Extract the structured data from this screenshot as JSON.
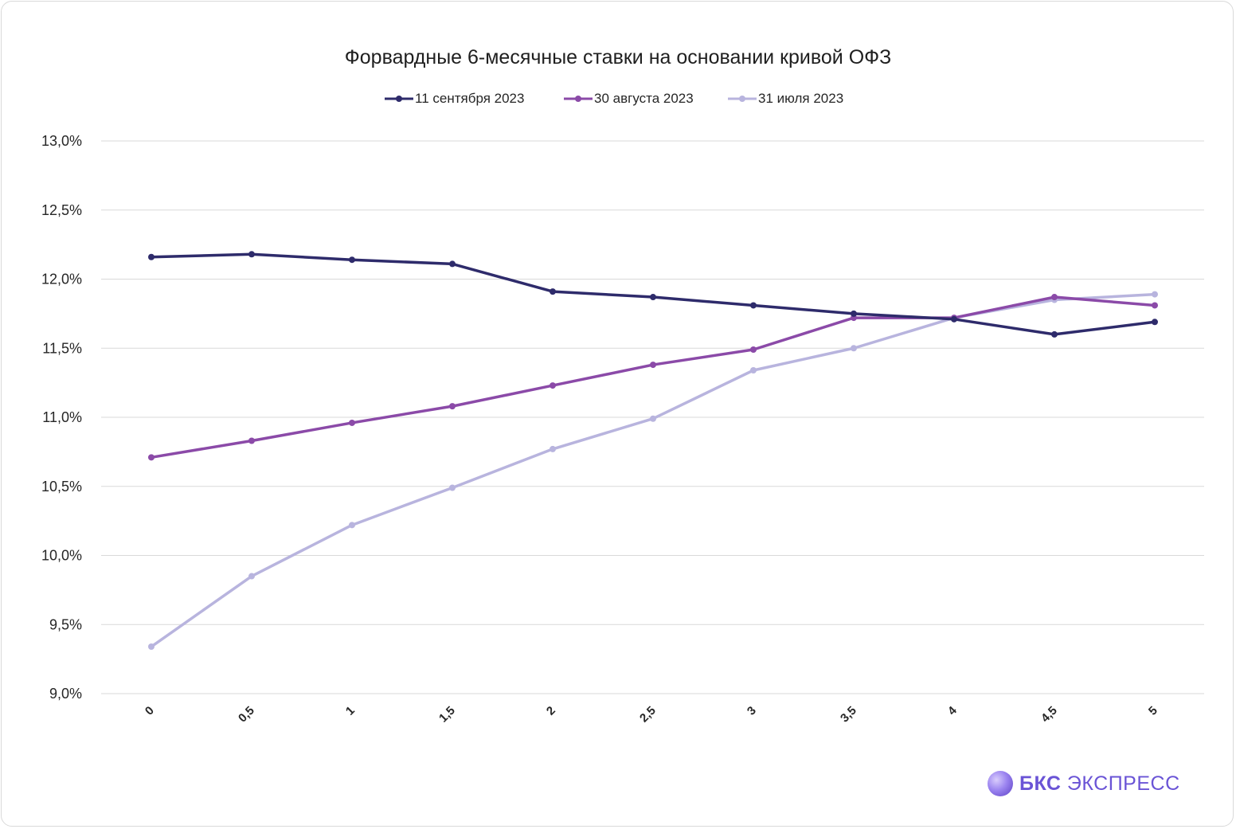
{
  "chart_data": {
    "type": "line",
    "title": "Форвардные 6-месячные ставки на основании кривой ОФЗ",
    "categories": [
      "0",
      "0,5",
      "1",
      "1,5",
      "2",
      "2,5",
      "3",
      "3,5",
      "4",
      "4,5",
      "5"
    ],
    "y_tick_labels": [
      "9,0%",
      "9,5%",
      "10,0%",
      "10,5%",
      "11,0%",
      "11,5%",
      "12,0%",
      "12,5%",
      "13,0%"
    ],
    "ylim": [
      9.0,
      13.0
    ],
    "grid": true,
    "legend_position": "top",
    "series": [
      {
        "name": "11 сентября 2023",
        "color": "#2e2b6b",
        "values": [
          12.16,
          12.18,
          12.14,
          12.11,
          11.91,
          11.87,
          11.81,
          11.75,
          11.71,
          11.6,
          11.69
        ]
      },
      {
        "name": "30 августа 2023",
        "color": "#8b4aa8",
        "values": [
          10.71,
          10.83,
          10.96,
          11.08,
          11.23,
          11.38,
          11.49,
          11.72,
          11.72,
          11.87,
          11.81
        ]
      },
      {
        "name": "31 июля 2023",
        "color": "#b8b4de",
        "values": [
          9.34,
          9.85,
          10.22,
          10.49,
          10.77,
          10.99,
          11.34,
          11.5,
          11.72,
          11.85,
          11.89
        ]
      }
    ]
  },
  "branding": {
    "logo_bold": "БКС",
    "logo_rest": " ЭКСПРЕСС"
  }
}
